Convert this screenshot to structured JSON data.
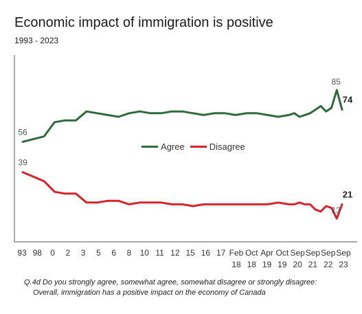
{
  "title": "Economic impact of immigration is positive",
  "subtitle": "1993 - 2023",
  "note": {
    "line1": "Q.4d  Do you strongly agree, somewhat agree, somewhat disagree or strongly disagree:",
    "line2": "Overall, immigration has a positive impact on the economy of Canada"
  },
  "colors": {
    "agree": "#2e6b3a",
    "disagree": "#d8232a",
    "axis": "#555555"
  },
  "chart_data": {
    "type": "line",
    "title": "Economic impact of immigration is positive",
    "subtitle": "1993 - 2023",
    "x_ticks": [
      {
        "top": "93",
        "bottom": ""
      },
      {
        "top": "98",
        "bottom": ""
      },
      {
        "top": "0",
        "bottom": ""
      },
      {
        "top": "2",
        "bottom": ""
      },
      {
        "top": "3",
        "bottom": ""
      },
      {
        "top": "5",
        "bottom": ""
      },
      {
        "top": "6",
        "bottom": ""
      },
      {
        "top": "8",
        "bottom": ""
      },
      {
        "top": "10",
        "bottom": ""
      },
      {
        "top": "11",
        "bottom": ""
      },
      {
        "top": "12",
        "bottom": ""
      },
      {
        "top": "15",
        "bottom": ""
      },
      {
        "top": "16",
        "bottom": ""
      },
      {
        "top": "17",
        "bottom": ""
      },
      {
        "top": "Feb",
        "bottom": "18"
      },
      {
        "top": "Oct",
        "bottom": "18"
      },
      {
        "top": "Apr",
        "bottom": "19"
      },
      {
        "top": "Oct",
        "bottom": "19"
      },
      {
        "top": "Sep",
        "bottom": "20"
      },
      {
        "top": "Sep",
        "bottom": "21"
      },
      {
        "top": "Sep",
        "bottom": "22"
      },
      {
        "top": "Sep",
        "bottom": "23"
      }
    ],
    "x": [
      1993,
      1995,
      1996,
      1997,
      1998,
      1999,
      2000,
      2001,
      2002,
      2003,
      2004,
      2005,
      2006,
      2007,
      2008,
      2009,
      2010,
      2011,
      2012,
      2013,
      2014,
      2015,
      2016,
      2017,
      2018,
      2018.5,
      2019,
      2019.5,
      2020,
      2020.5,
      2021,
      2021.5,
      2022,
      2022.5,
      2023
    ],
    "series": [
      {
        "name": "Agree",
        "color": "#2e6b3a",
        "values": [
          56,
          59,
          67,
          68,
          68,
          73,
          72,
          71,
          70,
          72,
          73,
          72,
          72,
          73,
          73,
          72,
          71,
          72,
          72,
          71,
          72,
          72,
          71,
          70,
          71,
          72,
          70,
          71,
          72,
          74,
          76,
          73,
          75,
          85,
          74
        ],
        "labels": [
          {
            "index": 0,
            "text": "56"
          },
          {
            "index": 33,
            "text": "85"
          },
          {
            "index": 34,
            "text": "74"
          }
        ]
      },
      {
        "name": "Disagree",
        "color": "#d8232a",
        "values": [
          39,
          34,
          28,
          27,
          27,
          22,
          22,
          23,
          23,
          21,
          22,
          22,
          22,
          21,
          21,
          20,
          21,
          21,
          21,
          21,
          21,
          21,
          21,
          22,
          21,
          21,
          22,
          21,
          21,
          18,
          17,
          20,
          19,
          13,
          21
        ],
        "labels": [
          {
            "index": 0,
            "text": "39"
          },
          {
            "index": 33,
            "text": "13"
          },
          {
            "index": 34,
            "text": "21"
          }
        ]
      }
    ],
    "ylim": [
      0,
      100
    ],
    "grid": false,
    "legend": "center"
  }
}
